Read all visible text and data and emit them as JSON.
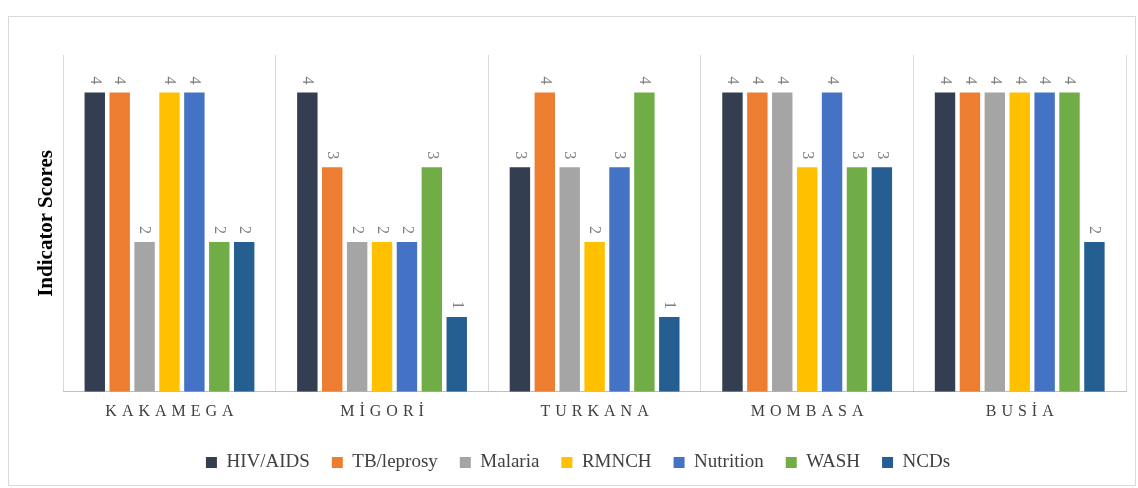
{
  "chart_data": {
    "type": "bar",
    "ylabel": "Indicator Scores",
    "categories": [
      "KAKAMEGA",
      "MİGORİ",
      "TURKANA",
      "MOMBASA",
      "BUSİA"
    ],
    "series": [
      {
        "name": "HIV/AIDS",
        "color": "#333f50",
        "values": [
          4,
          4,
          3,
          4,
          4
        ]
      },
      {
        "name": "TB/leprosy",
        "color": "#ed7d31",
        "values": [
          4,
          3,
          4,
          4,
          4
        ]
      },
      {
        "name": "Malaria",
        "color": "#a5a5a5",
        "values": [
          2,
          2,
          3,
          4,
          4
        ]
      },
      {
        "name": "RMNCH",
        "color": "#ffc000",
        "values": [
          4,
          2,
          2,
          3,
          4
        ]
      },
      {
        "name": "Nutrition",
        "color": "#4472c4",
        "values": [
          4,
          2,
          3,
          4,
          4
        ]
      },
      {
        "name": "WASH",
        "color": "#70ad47",
        "values": [
          2,
          3,
          4,
          3,
          4
        ]
      },
      {
        "name": "NCDs",
        "color": "#255e91",
        "values": [
          2,
          1,
          1,
          3,
          2
        ]
      }
    ],
    "ylim": [
      0,
      4.5
    ],
    "tick_labels": "x",
    "grid": "x",
    "legend": "bottom",
    "data_labels": true
  }
}
